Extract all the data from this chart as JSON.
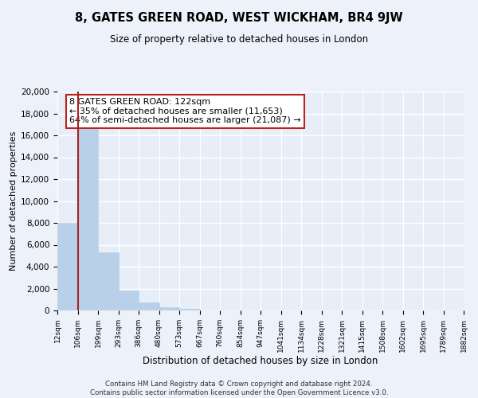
{
  "title": "8, GATES GREEN ROAD, WEST WICKHAM, BR4 9JW",
  "subtitle": "Size of property relative to detached houses in London",
  "xlabel": "Distribution of detached houses by size in London",
  "ylabel": "Number of detached properties",
  "footer_line1": "Contains HM Land Registry data © Crown copyright and database right 2024.",
  "footer_line2": "Contains public sector information licensed under the Open Government Licence v3.0.",
  "bin_labels": [
    "12sqm",
    "106sqm",
    "199sqm",
    "293sqm",
    "386sqm",
    "480sqm",
    "573sqm",
    "667sqm",
    "760sqm",
    "854sqm",
    "947sqm",
    "1041sqm",
    "1134sqm",
    "1228sqm",
    "1321sqm",
    "1415sqm",
    "1508sqm",
    "1602sqm",
    "1695sqm",
    "1789sqm",
    "1882sqm"
  ],
  "bar_values": [
    8000,
    16600,
    5300,
    1800,
    750,
    280,
    180,
    0,
    0,
    0,
    0,
    0,
    0,
    0,
    0,
    0,
    0,
    0,
    0,
    0
  ],
  "ylim": [
    0,
    20000
  ],
  "yticks": [
    0,
    2000,
    4000,
    6000,
    8000,
    10000,
    12000,
    14000,
    16000,
    18000,
    20000
  ],
  "bar_color": "#b8d0e8",
  "bar_edge_color": "#b8d0e8",
  "property_line_color": "#aa2222",
  "annotation_text_line1": "8 GATES GREEN ROAD: 122sqm",
  "annotation_text_line2": "← 35% of detached houses are smaller (11,653)",
  "annotation_text_line3": "64% of semi-detached houses are larger (21,087) →",
  "background_color": "#edf1f9",
  "plot_bg_color": "#e8eef8",
  "grid_color": "#ffffff"
}
